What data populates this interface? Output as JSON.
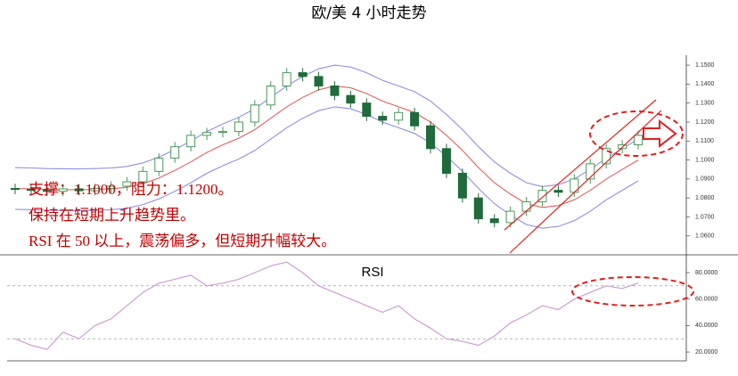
{
  "chart_data": [
    {
      "type": "candlestick",
      "title": "欧/美 4 小时走势",
      "annotations": [
        "支撑：1.1000，阻力：1.1200。",
        "保持在短期上升趋势里。",
        "RSI 在 50 以上，震荡偏多，但短期升幅较大。"
      ],
      "open": [
        1.085,
        1.0845,
        1.084,
        1.0835,
        1.0848,
        1.0838,
        1.085,
        1.0862,
        1.0885,
        1.094,
        1.101,
        1.107,
        1.113,
        1.1145,
        1.115,
        1.12,
        1.129,
        1.139,
        1.146,
        1.144,
        1.139,
        1.134,
        1.13,
        1.123,
        1.121,
        1.125,
        1.118,
        1.106,
        1.093,
        1.08,
        1.069,
        1.067,
        1.073,
        1.078,
        1.084,
        1.083,
        1.09,
        1.098,
        1.106,
        1.108
      ],
      "high": [
        1.0875,
        1.087,
        1.0865,
        1.0873,
        1.0873,
        1.0875,
        1.0887,
        1.091,
        1.0965,
        1.1035,
        1.1095,
        1.1155,
        1.117,
        1.1175,
        1.1225,
        1.1315,
        1.1415,
        1.1485,
        1.1485,
        1.1465,
        1.1415,
        1.1365,
        1.1325,
        1.1255,
        1.1275,
        1.1275,
        1.1205,
        1.1085,
        1.0955,
        1.0825,
        1.0715,
        1.0755,
        1.0805,
        1.0865,
        1.0865,
        1.0925,
        1.1005,
        1.1085,
        1.1105,
        1.1155
      ],
      "low": [
        1.082,
        1.0815,
        1.081,
        1.081,
        1.0813,
        1.0813,
        1.0825,
        1.0837,
        1.086,
        1.0915,
        1.0985,
        1.1045,
        1.1105,
        1.112,
        1.1125,
        1.1175,
        1.1265,
        1.1365,
        1.1415,
        1.1365,
        1.1315,
        1.1275,
        1.1205,
        1.1185,
        1.1185,
        1.1155,
        1.1035,
        1.0905,
        1.0775,
        1.0665,
        1.0645,
        1.0645,
        1.0705,
        1.0755,
        1.0805,
        1.0805,
        1.0875,
        1.0955,
        1.1035,
        1.1055
      ],
      "close": [
        1.0845,
        1.084,
        1.0835,
        1.0848,
        1.0838,
        1.085,
        1.0862,
        1.0885,
        1.094,
        1.101,
        1.107,
        1.113,
        1.1145,
        1.115,
        1.12,
        1.129,
        1.139,
        1.146,
        1.144,
        1.139,
        1.134,
        1.13,
        1.123,
        1.121,
        1.125,
        1.118,
        1.106,
        1.093,
        1.08,
        1.069,
        1.067,
        1.073,
        1.078,
        1.084,
        1.083,
        1.09,
        1.098,
        1.106,
        1.108,
        1.113
      ],
      "up_color": "#4a9a5c",
      "down_color": "#1f6b3a",
      "bands": [
        {
          "color": "#9090dd",
          "values": [
            1.096,
            1.0958,
            1.0955,
            1.0954,
            1.0953,
            1.0955,
            1.0958,
            1.0966,
            1.0985,
            1.1015,
            1.1055,
            1.11,
            1.115,
            1.119,
            1.1225,
            1.127,
            1.133,
            1.139,
            1.144,
            1.148,
            1.15,
            1.149,
            1.146,
            1.142,
            1.139,
            1.136,
            1.131,
            1.124,
            1.116,
            1.107,
            1.099,
            1.093,
            1.088,
            1.086,
            1.087,
            1.09,
            1.095,
            1.101,
            1.106,
            1.111
          ]
        },
        {
          "color": "#e06060",
          "values": [
            1.085,
            1.0848,
            1.0845,
            1.0844,
            1.0843,
            1.0845,
            1.0848,
            1.0856,
            1.0875,
            1.0905,
            1.0945,
            1.099,
            1.104,
            1.108,
            1.1115,
            1.116,
            1.122,
            1.128,
            1.133,
            1.137,
            1.139,
            1.138,
            1.135,
            1.131,
            1.128,
            1.125,
            1.12,
            1.113,
            1.105,
            1.096,
            1.088,
            1.082,
            1.077,
            1.075,
            1.076,
            1.079,
            1.084,
            1.09,
            1.095,
            1.1
          ]
        },
        {
          "color": "#9090dd",
          "values": [
            1.074,
            1.0738,
            1.0735,
            1.0734,
            1.0733,
            1.0735,
            1.0738,
            1.0746,
            1.0765,
            1.0795,
            1.0835,
            1.088,
            1.093,
            1.097,
            1.1005,
            1.105,
            1.111,
            1.117,
            1.122,
            1.126,
            1.128,
            1.127,
            1.124,
            1.12,
            1.117,
            1.114,
            1.109,
            1.102,
            1.094,
            1.085,
            1.077,
            1.071,
            1.066,
            1.064,
            1.065,
            1.068,
            1.073,
            1.079,
            1.084,
            1.089
          ]
        }
      ],
      "ylim": [
        1.0505,
        1.1552
      ],
      "yticks": [
        {
          "value": 1.06,
          "label": "1.0600"
        },
        {
          "value": 1.07,
          "label": "1.0700"
        },
        {
          "value": 1.08,
          "label": "1.0800"
        },
        {
          "value": 1.09,
          "label": "1.0900"
        },
        {
          "value": 1.1,
          "label": "1.1000"
        },
        {
          "value": 1.11,
          "label": "1.1100"
        },
        {
          "value": 1.12,
          "label": "1.1200"
        },
        {
          "value": 1.13,
          "label": "1.1300"
        },
        {
          "value": 1.14,
          "label": "1.1400"
        },
        {
          "value": 1.15,
          "label": "1.1500"
        }
      ]
    },
    {
      "type": "line",
      "title": "RSI",
      "color": "#c8a0d0",
      "values": [
        30,
        25,
        22,
        35,
        30,
        40,
        45,
        55,
        65,
        72,
        75,
        78,
        70,
        72,
        75,
        80,
        85,
        88,
        80,
        70,
        65,
        60,
        55,
        50,
        55,
        45,
        38,
        30,
        28,
        25,
        32,
        42,
        48,
        55,
        52,
        60,
        65,
        70,
        68,
        72
      ],
      "reference_lines": [
        70,
        30
      ],
      "ylim": [
        13.3,
        92.1
      ],
      "yticks": [
        {
          "value": 20,
          "label": "20.0000"
        },
        {
          "value": 40,
          "label": "40.0000"
        },
        {
          "value": 60,
          "label": "60.0000"
        },
        {
          "value": 80,
          "label": "80.0000"
        }
      ]
    }
  ]
}
